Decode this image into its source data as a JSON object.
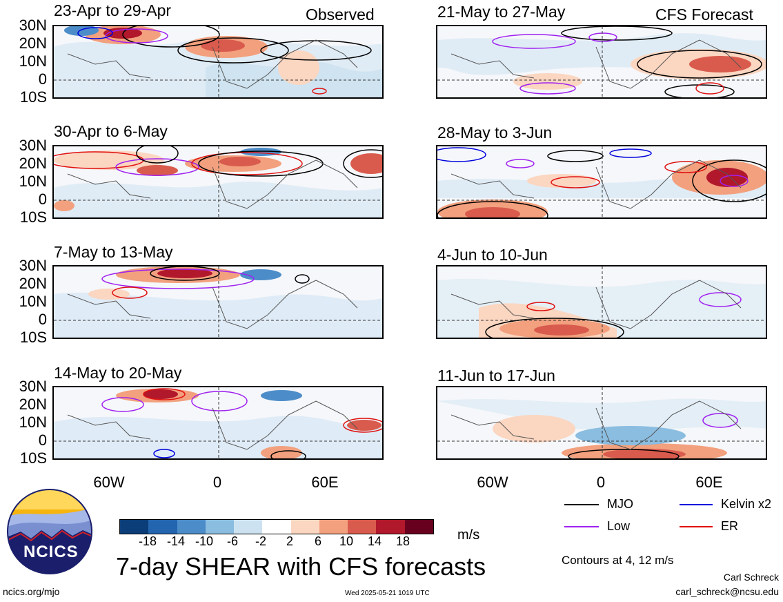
{
  "panels": [
    {
      "id": "obs1",
      "title": "23-Apr to 29-Apr",
      "tag": "Observed"
    },
    {
      "id": "obs2",
      "title": "30-Apr to 6-May",
      "tag": ""
    },
    {
      "id": "obs3",
      "title": "7-May to 13-May",
      "tag": ""
    },
    {
      "id": "obs4",
      "title": "14-May to 20-May",
      "tag": ""
    },
    {
      "id": "fc1",
      "title": "21-May to 27-May",
      "tag": "CFS Forecast"
    },
    {
      "id": "fc2",
      "title": "28-May to 3-Jun",
      "tag": ""
    },
    {
      "id": "fc3",
      "title": "4-Jun to 10-Jun",
      "tag": ""
    },
    {
      "id": "fc4",
      "title": "11-Jun to 17-Jun",
      "tag": ""
    }
  ],
  "y_axis": [
    "30N",
    "20N",
    "10N",
    "0",
    "10S"
  ],
  "x_axis": [
    "60W",
    "0",
    "60E"
  ],
  "colorbar": {
    "levels": [
      "-18",
      "-14",
      "-10",
      "-6",
      "-2",
      "2",
      "6",
      "10",
      "14",
      "18"
    ],
    "colors": [
      "#0b3d78",
      "#2465b0",
      "#4c8dc9",
      "#8bbde0",
      "#cde2f0",
      "#ffffff",
      "#fbd6c1",
      "#f2a07e",
      "#d95b4d",
      "#b2182b",
      "#67001f"
    ],
    "unit": "m/s"
  },
  "legend": [
    {
      "label": "MJO",
      "color": "#000000"
    },
    {
      "label": "Kelvin x2",
      "color": "#0000dd"
    },
    {
      "label": "Low",
      "color": "#a020f0"
    },
    {
      "label": "ER",
      "color": "#e01010"
    }
  ],
  "contour_note": "Contours at 4, 12 m/s",
  "main_title": "7-day SHEAR with CFS forecasts",
  "logo_text": "NCICS",
  "footer": {
    "url": "ncics.org/mjo",
    "timestamp": "Wed 2025-05-21 1019 UTC",
    "author": "Carl Schreck",
    "email": "carl_schreck@ncsu.edu"
  }
}
